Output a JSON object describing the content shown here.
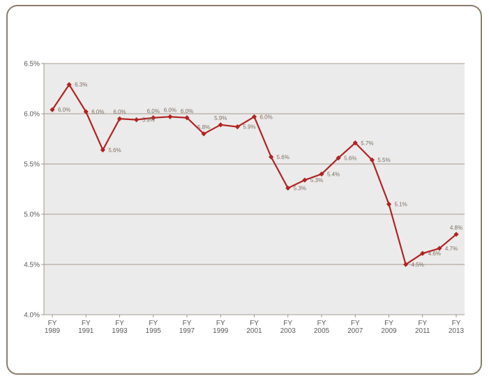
{
  "chart_data": {
    "type": "line",
    "title": "",
    "xlabel": "",
    "ylabel": "",
    "ylim": [
      4.0,
      6.5
    ],
    "yticks": [
      "4.0%",
      "4.5%",
      "5.0%",
      "5.5%",
      "6.0%",
      "6.5%"
    ],
    "grid": true,
    "legend": "none",
    "x": [
      1989,
      1990,
      1991,
      1992,
      1993,
      1994,
      1995,
      1996,
      1997,
      1998,
      1999,
      2000,
      2001,
      2002,
      2003,
      2004,
      2005,
      2006,
      2007,
      2008,
      2009,
      2010,
      2011,
      2012,
      2013
    ],
    "xtick_labels": [
      {
        "top": "FY",
        "bottom": "1989"
      },
      {
        "top": "FY",
        "bottom": "1991"
      },
      {
        "top": "FY",
        "bottom": "1993"
      },
      {
        "top": "FY",
        "bottom": "1995"
      },
      {
        "top": "FY",
        "bottom": "1997"
      },
      {
        "top": "FY",
        "bottom": "1999"
      },
      {
        "top": "FY",
        "bottom": "2001"
      },
      {
        "top": "FY",
        "bottom": "2003"
      },
      {
        "top": "FY",
        "bottom": "2005"
      },
      {
        "top": "FY",
        "bottom": "2007"
      },
      {
        "top": "FY",
        "bottom": "2009"
      },
      {
        "top": "FY",
        "bottom": "2011"
      },
      {
        "top": "FY",
        "bottom": "2013"
      }
    ],
    "series": [
      {
        "values": [
          6.04,
          6.29,
          6.02,
          5.64,
          5.95,
          5.94,
          5.96,
          5.97,
          5.96,
          5.8,
          5.89,
          5.87,
          5.97,
          5.57,
          5.26,
          5.34,
          5.4,
          5.56,
          5.71,
          5.54,
          5.1,
          4.5,
          4.61,
          4.66,
          4.8
        ],
        "labels": [
          "6.0%",
          "6.3%",
          "6.0%",
          "5.6%",
          "6.0%",
          "5.9%",
          "6.0%",
          "6.0%",
          "6.0%",
          "5.8%",
          "5.9%",
          "5.9%",
          "6.0%",
          "5.6%",
          "5.3%",
          "5.3%",
          "5.4%",
          "5.6%",
          "5.7%",
          "5.5%",
          "5.1%",
          "4.5%",
          "4.6%",
          "4.7%",
          "4.8%"
        ],
        "color": "#b22222"
      }
    ],
    "colors": {
      "plot_background": "#ebebeb",
      "gridline": "#8c8070",
      "frame_border": "#8b7d6b"
    }
  }
}
